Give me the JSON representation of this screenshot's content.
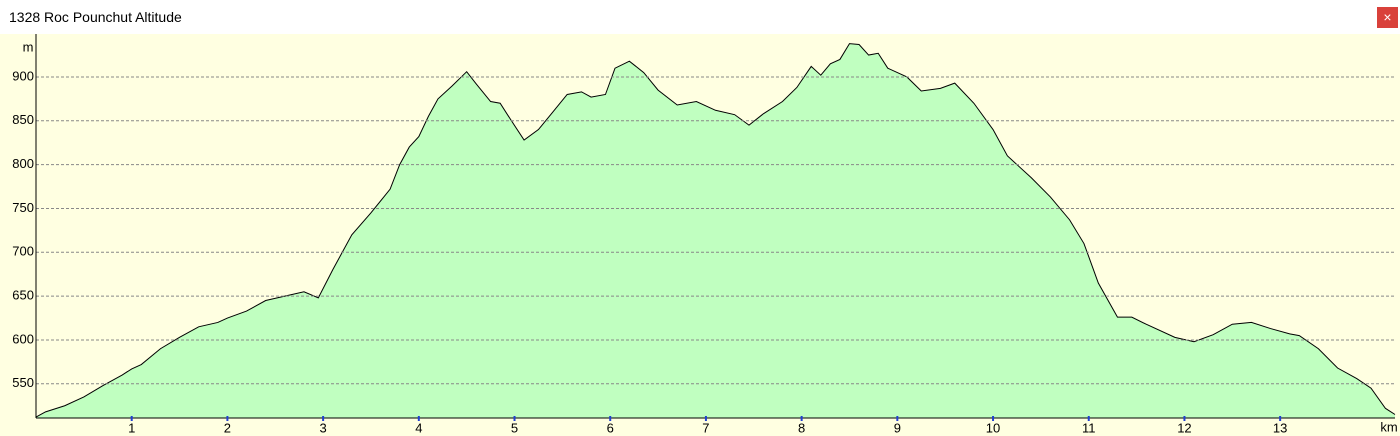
{
  "close_button": "×",
  "chart_data": {
    "type": "area",
    "title": "1328 Roc Pounchut Altitude",
    "y_label": "m",
    "x_label": "km",
    "color": "#c0ffc0",
    "line_color": "#000000",
    "grid": true,
    "x": [
      0,
      0.1,
      0.3,
      0.5,
      0.7,
      0.9,
      1.0,
      1.1,
      1.3,
      1.5,
      1.7,
      1.9,
      2.0,
      2.2,
      2.4,
      2.6,
      2.8,
      2.95,
      3.1,
      3.3,
      3.5,
      3.7,
      3.8,
      3.9,
      4.0,
      4.1,
      4.2,
      4.35,
      4.5,
      4.6,
      4.75,
      4.85,
      4.95,
      5.1,
      5.25,
      5.4,
      5.55,
      5.7,
      5.8,
      5.95,
      6.05,
      6.2,
      6.35,
      6.5,
      6.7,
      6.9,
      7.1,
      7.3,
      7.45,
      7.6,
      7.8,
      7.95,
      8.1,
      8.2,
      8.3,
      8.4,
      8.5,
      8.6,
      8.7,
      8.8,
      8.9,
      9.1,
      9.25,
      9.45,
      9.6,
      9.8,
      10.0,
      10.15,
      10.4,
      10.6,
      10.8,
      10.95,
      11.1,
      11.3,
      11.45,
      11.6,
      11.9,
      12.1,
      12.3,
      12.5,
      12.7,
      12.9,
      13.1,
      13.2,
      13.4,
      13.6,
      13.8,
      13.95,
      14.1,
      14.2
    ],
    "values": [
      512,
      518,
      525,
      535,
      548,
      560,
      567,
      572,
      590,
      603,
      615,
      620,
      625,
      633,
      645,
      650,
      655,
      648,
      680,
      720,
      745,
      772,
      800,
      820,
      832,
      855,
      875,
      890,
      906,
      892,
      872,
      870,
      853,
      828,
      840,
      860,
      880,
      883,
      877,
      880,
      910,
      918,
      905,
      885,
      868,
      872,
      862,
      857,
      845,
      858,
      872,
      888,
      912,
      902,
      915,
      920,
      938,
      937,
      925,
      927,
      910,
      900,
      884,
      887,
      893,
      870,
      840,
      810,
      785,
      763,
      737,
      710,
      665,
      626,
      626,
      618,
      603,
      598,
      606,
      618,
      620,
      613,
      607,
      605,
      590,
      568,
      556,
      545,
      522,
      515
    ],
    "xlim": [
      0,
      14.2
    ],
    "ylim": [
      511,
      949
    ],
    "xticks": [
      1,
      2,
      3,
      4,
      5,
      6,
      7,
      8,
      9,
      10,
      11,
      12,
      13
    ],
    "yticks": [
      550,
      600,
      650,
      700,
      750,
      800,
      850,
      900
    ]
  }
}
